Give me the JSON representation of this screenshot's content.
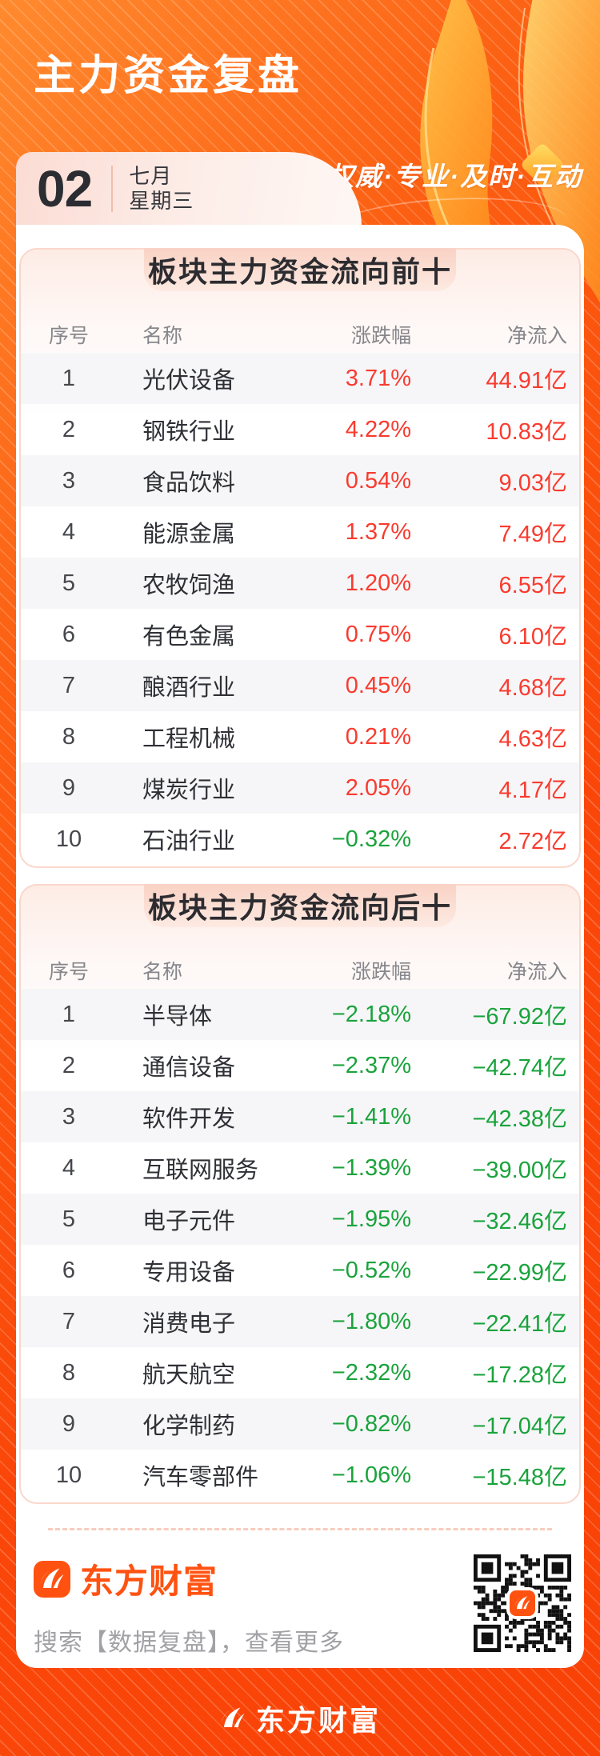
{
  "header": {
    "title": "主力资金复盘",
    "slogan": "权威·专业·及时·互动",
    "date": {
      "day": "02",
      "month": "七月",
      "weekday": "星期三"
    }
  },
  "chart_data": [
    {
      "type": "table",
      "title": "板块主力资金流向前十",
      "columns": [
        "序号",
        "名称",
        "涨跌幅",
        "净流入"
      ],
      "rows": [
        {
          "index": "1",
          "name": "光伏设备",
          "change": "3.71%",
          "inflow": "44.91亿",
          "change_color": "red",
          "inflow_color": "red"
        },
        {
          "index": "2",
          "name": "钢铁行业",
          "change": "4.22%",
          "inflow": "10.83亿",
          "change_color": "red",
          "inflow_color": "red"
        },
        {
          "index": "3",
          "name": "食品饮料",
          "change": "0.54%",
          "inflow": "9.03亿",
          "change_color": "red",
          "inflow_color": "red"
        },
        {
          "index": "4",
          "name": "能源金属",
          "change": "1.37%",
          "inflow": "7.49亿",
          "change_color": "red",
          "inflow_color": "red"
        },
        {
          "index": "5",
          "name": "农牧饲渔",
          "change": "1.20%",
          "inflow": "6.55亿",
          "change_color": "red",
          "inflow_color": "red"
        },
        {
          "index": "6",
          "name": "有色金属",
          "change": "0.75%",
          "inflow": "6.10亿",
          "change_color": "red",
          "inflow_color": "red"
        },
        {
          "index": "7",
          "name": "酿酒行业",
          "change": "0.45%",
          "inflow": "4.68亿",
          "change_color": "red",
          "inflow_color": "red"
        },
        {
          "index": "8",
          "name": "工程机械",
          "change": "0.21%",
          "inflow": "4.63亿",
          "change_color": "red",
          "inflow_color": "red"
        },
        {
          "index": "9",
          "name": "煤炭行业",
          "change": "2.05%",
          "inflow": "4.17亿",
          "change_color": "red",
          "inflow_color": "red"
        },
        {
          "index": "10",
          "name": "石油行业",
          "change": "−0.32%",
          "inflow": "2.72亿",
          "change_color": "green",
          "inflow_color": "red"
        }
      ]
    },
    {
      "type": "table",
      "title": "板块主力资金流向后十",
      "columns": [
        "序号",
        "名称",
        "涨跌幅",
        "净流入"
      ],
      "rows": [
        {
          "index": "1",
          "name": "半导体",
          "change": "−2.18%",
          "inflow": "−67.92亿",
          "change_color": "green",
          "inflow_color": "green"
        },
        {
          "index": "2",
          "name": "通信设备",
          "change": "−2.37%",
          "inflow": "−42.74亿",
          "change_color": "green",
          "inflow_color": "green"
        },
        {
          "index": "3",
          "name": "软件开发",
          "change": "−1.41%",
          "inflow": "−42.38亿",
          "change_color": "green",
          "inflow_color": "green"
        },
        {
          "index": "4",
          "name": "互联网服务",
          "change": "−1.39%",
          "inflow": "−39.00亿",
          "change_color": "green",
          "inflow_color": "green"
        },
        {
          "index": "5",
          "name": "电子元件",
          "change": "−1.95%",
          "inflow": "−32.46亿",
          "change_color": "green",
          "inflow_color": "green"
        },
        {
          "index": "6",
          "name": "专用设备",
          "change": "−0.52%",
          "inflow": "−22.99亿",
          "change_color": "green",
          "inflow_color": "green"
        },
        {
          "index": "7",
          "name": "消费电子",
          "change": "−1.80%",
          "inflow": "−22.41亿",
          "change_color": "green",
          "inflow_color": "green"
        },
        {
          "index": "8",
          "name": "航天航空",
          "change": "−2.32%",
          "inflow": "−17.28亿",
          "change_color": "green",
          "inflow_color": "green"
        },
        {
          "index": "9",
          "name": "化学制药",
          "change": "−0.82%",
          "inflow": "−17.04亿",
          "change_color": "green",
          "inflow_color": "green"
        },
        {
          "index": "10",
          "name": "汽车零部件",
          "change": "−1.06%",
          "inflow": "−15.48亿",
          "change_color": "green",
          "inflow_color": "green"
        }
      ]
    }
  ],
  "footer": {
    "brand": "东方财富",
    "search_hint": "搜索【数据复盘】，查看更多"
  },
  "bottom": {
    "brand": "东方财富"
  },
  "colors": {
    "red": "#f93b2f",
    "green": "#1aa33c",
    "accent": "#ff5211",
    "background": "#fa4709"
  }
}
